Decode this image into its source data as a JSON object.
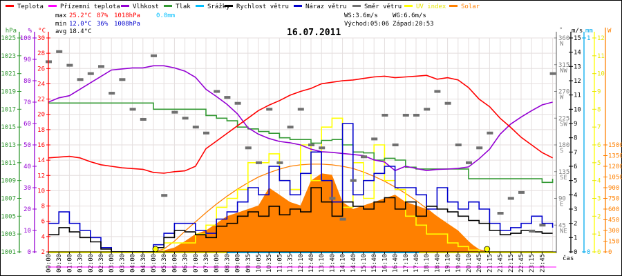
{
  "legend": [
    {
      "label": "Teplota",
      "color": "#ff0000"
    },
    {
      "label": "Přízemní teplota",
      "color": "#ff00ff"
    },
    {
      "label": "Vlhkost",
      "color": "#9400d3"
    },
    {
      "label": "Tlak",
      "color": "#339933"
    },
    {
      "label": "Srážky",
      "color": "#00bfff"
    },
    {
      "label": "Rychlost větru",
      "color": "#000000"
    },
    {
      "label": "Náraz větru",
      "color": "#0000cc"
    },
    {
      "label": "Směr větru",
      "color": "#707070"
    },
    {
      "label": "UV index",
      "color": "#ffff00"
    },
    {
      "label": "Solar",
      "color": "#ff8000"
    }
  ],
  "stats": {
    "max_label": "max",
    "max_temp": "25.2°C",
    "max_hum": "87%",
    "max_press": "1018hPa",
    "rain": "0.0mm",
    "min_label": "min",
    "min_temp": "12.0°C",
    "min_hum": "36%",
    "min_press": "1008hPa",
    "avg_label": "avg",
    "avg_temp": "18.4°C",
    "ws": "WS:3.6m/s",
    "wg": "WG:6.6m/s",
    "sunrise": "Východ:05:06",
    "sunset": "Západ:20:53"
  },
  "chart_data": {
    "type": "line",
    "title": "16.07.2011",
    "xlabel": "čas",
    "x_tick_labels": [
      "00:00",
      "00:30",
      "01:00",
      "01:30",
      "02:00",
      "02:30",
      "03:00",
      "03:30",
      "04:00",
      "04:30",
      "05:00",
      "05:30",
      "06:00",
      "06:30",
      "07:00",
      "07:30",
      "08:00",
      "08:30",
      "09:00",
      "09:35",
      "10:05",
      "10:35",
      "11:05",
      "11:35",
      "12:10",
      "12:40",
      "13:10",
      "13:40",
      "14:10",
      "14:40",
      "15:10",
      "15:40",
      "16:10",
      "16:40",
      "17:10",
      "17:40",
      "18:10",
      "18:40",
      "19:10",
      "19:40",
      "20:10",
      "20:45",
      "21:15",
      "21:45",
      "22:15",
      "22:45",
      "23:15",
      "23:45"
    ],
    "x_hours_step": 0.5,
    "axes": {
      "pressure": {
        "unit": "hPa",
        "range": [
          1001,
          1025
        ],
        "ticks": [
          1001,
          1003,
          1005,
          1007,
          1009,
          1011,
          1013,
          1015,
          1017,
          1019,
          1021,
          1023,
          1025
        ],
        "color": "#339933"
      },
      "humidity": {
        "unit": "%",
        "range": [
          0,
          100
        ],
        "ticks": [
          0,
          10,
          20,
          30,
          40,
          50,
          60,
          70,
          80,
          90,
          100
        ],
        "color": "#9400d3"
      },
      "temperature": {
        "unit": "°C",
        "range": [
          2,
          30
        ],
        "ticks": [
          2,
          4,
          6,
          8,
          10,
          12,
          14,
          16,
          18,
          20,
          22,
          24,
          26,
          28,
          30
        ],
        "color": "#ff0000"
      },
      "direction": {
        "unit": "°",
        "range": [
          0,
          360
        ],
        "ticks": [
          [
            45,
            "45",
            "NE"
          ],
          [
            90,
            "90",
            "E"
          ],
          [
            135,
            "135",
            "SE"
          ],
          [
            180,
            "180",
            "S"
          ],
          [
            225,
            "225",
            "SW"
          ],
          [
            270,
            "270",
            "W"
          ],
          [
            315,
            "315",
            "NW"
          ],
          [
            360,
            "360",
            "N"
          ]
        ],
        "color": "#808080"
      },
      "wind": {
        "unit": "m/s",
        "range": [
          0,
          15
        ],
        "ticks": [
          0,
          1,
          2,
          3,
          4,
          5,
          6,
          7,
          8,
          9,
          10,
          11,
          12,
          13,
          14,
          15
        ],
        "color": "#000000"
      },
      "rain": {
        "unit": "mm",
        "range": [
          0,
          1
        ],
        "ticks": [
          0,
          1
        ],
        "color": "#00aaee"
      },
      "uv": {
        "unit": "",
        "range": [
          0,
          12
        ],
        "ticks": [
          0,
          1,
          2,
          3,
          4,
          5,
          6,
          7,
          8,
          9,
          10,
          11,
          12
        ],
        "color": "#dddd00"
      },
      "solar": {
        "unit": "W",
        "range": [
          0,
          3000
        ],
        "ticks": [
          0,
          150,
          300,
          450,
          600,
          750,
          900,
          1050,
          1200,
          1350,
          1500
        ],
        "color": "#ff8000"
      }
    },
    "series": [
      {
        "name": "Solar",
        "axis": "solar",
        "kind": "area",
        "color": "#ff8000",
        "values": [
          0,
          0,
          0,
          0,
          0,
          0,
          0,
          0,
          0,
          0,
          0,
          20,
          60,
          150,
          250,
          300,
          400,
          500,
          550,
          600,
          650,
          900,
          800,
          700,
          650,
          1000,
          1100,
          1080,
          700,
          600,
          650,
          700,
          750,
          800,
          700,
          650,
          600,
          500,
          400,
          300,
          150,
          20,
          0,
          0,
          0,
          0,
          0,
          0,
          0
        ]
      },
      {
        "name": "Solar theoretical",
        "axis": "solar",
        "kind": "line",
        "color": "#ff8000",
        "values": [
          0,
          0,
          0,
          0,
          0,
          0,
          0,
          0,
          0,
          0,
          0,
          40,
          150,
          290,
          420,
          550,
          670,
          780,
          880,
          970,
          1050,
          1110,
          1160,
          1200,
          1220,
          1230,
          1230,
          1220,
          1200,
          1170,
          1120,
          1060,
          990,
          910,
          820,
          720,
          610,
          490,
          370,
          250,
          130,
          30,
          0,
          0,
          0,
          0,
          0,
          0,
          0
        ]
      },
      {
        "name": "UV index",
        "axis": "uv",
        "kind": "step",
        "color": "#ffff00",
        "values": [
          0,
          0,
          0,
          0,
          0,
          0,
          0,
          0,
          0,
          0,
          0,
          0.5,
          0.5,
          0.5,
          1,
          1.5,
          2.5,
          3,
          3.5,
          5,
          5,
          5.5,
          4,
          3.5,
          6,
          4,
          7,
          7.5,
          2.5,
          5,
          3,
          6,
          4,
          3.5,
          2,
          1.5,
          1,
          1,
          0.5,
          0.3,
          0.1,
          0,
          0,
          0,
          0,
          0,
          0,
          0,
          0
        ]
      },
      {
        "name": "Tlak",
        "axis": "pressure",
        "kind": "step",
        "color": "#339933",
        "values": [
          1017.7,
          1017.7,
          1017.7,
          1017.7,
          1017.7,
          1017.7,
          1017.7,
          1017.7,
          1017.7,
          1017.7,
          1017,
          1017,
          1017,
          1017,
          1017,
          1016.3,
          1016,
          1015.7,
          1015,
          1014.8,
          1014.5,
          1014.3,
          1013.8,
          1013.6,
          1013.6,
          1013.2,
          1013.5,
          1013.6,
          1013,
          1012.2,
          1012.1,
          1011.3,
          1011.5,
          1011.3,
          1010.5,
          1010.3,
          1010.3,
          1010.3,
          1010.3,
          1010.3,
          1009.2,
          1009.2,
          1009.2,
          1009.2,
          1009.2,
          1009.2,
          1009.2,
          1008.8,
          1009.2
        ]
      },
      {
        "name": "Vlhkost",
        "axis": "humidity",
        "kind": "line",
        "color": "#9400d3",
        "values": [
          70,
          72,
          73,
          76,
          79,
          82,
          85,
          85.5,
          86,
          86,
          87,
          87,
          86,
          84.5,
          81.6,
          76,
          72.6,
          69,
          64.5,
          58,
          55,
          53,
          51.6,
          51,
          50,
          48,
          46.8,
          46.5,
          46,
          45.5,
          45,
          43,
          42,
          38,
          40,
          39,
          38,
          38.5,
          38.7,
          39,
          39.7,
          43.5,
          48,
          55,
          59.7,
          63,
          66,
          68.7,
          70
        ]
      },
      {
        "name": "Teplota",
        "axis": "temperature",
        "kind": "line",
        "color": "#ff0000",
        "values": [
          14.3,
          14.4,
          14.5,
          14.3,
          13.8,
          13.4,
          13.2,
          13.0,
          12.9,
          12.8,
          12.4,
          12.3,
          12.5,
          12.6,
          13.2,
          15.5,
          16.5,
          17.5,
          18.5,
          19.5,
          20.5,
          21.2,
          21.8,
          22.5,
          23.0,
          23.4,
          24.0,
          24.2,
          24.4,
          24.5,
          24.7,
          24.9,
          25.0,
          24.8,
          24.9,
          25.0,
          25.1,
          24.6,
          24.8,
          24.5,
          23.5,
          22.0,
          21.0,
          19.5,
          18.3,
          17.0,
          16.0,
          15.0,
          14.3
        ]
      },
      {
        "name": "Náraz větru",
        "axis": "wind",
        "kind": "step",
        "color": "#0000cc",
        "values": [
          2.0,
          2.8,
          2.0,
          1.5,
          1.0,
          0.3,
          0,
          0,
          0,
          0,
          0.5,
          1.3,
          2.0,
          2.0,
          1.5,
          1.3,
          2.3,
          2.8,
          3.5,
          4.5,
          4.0,
          6.0,
          5.0,
          4.0,
          5.5,
          7.0,
          5.0,
          3.5,
          9.0,
          4.0,
          5.0,
          5.5,
          6.0,
          4.5,
          4.5,
          4.0,
          3.0,
          4.5,
          3.5,
          3.0,
          3.5,
          3.0,
          2.0,
          1.5,
          1.7,
          2.0,
          2.5,
          2.0,
          1.7
        ]
      },
      {
        "name": "Rychlost větru",
        "axis": "wind",
        "kind": "step",
        "color": "#000000",
        "values": [
          1.2,
          1.7,
          1.4,
          1.0,
          0.7,
          0.2,
          0,
          0,
          0,
          0,
          0.3,
          1.0,
          1.5,
          1.4,
          1.2,
          1.0,
          1.8,
          2.0,
          2.5,
          2.8,
          2.5,
          3.2,
          2.6,
          3.0,
          2.8,
          4.5,
          3.5,
          2.5,
          3.5,
          3.2,
          3.0,
          3.5,
          3.8,
          3.0,
          3.5,
          2.5,
          3.2,
          3.0,
          2.8,
          2.5,
          2.2,
          2.0,
          1.5,
          1.2,
          1.3,
          1.5,
          1.4,
          1.3,
          1.3
        ]
      },
      {
        "name": "Směr větru",
        "axis": "direction",
        "kind": "dash",
        "color": "#707070",
        "values": [
          320,
          337,
          314,
          290,
          300,
          312,
          267,
          290,
          240,
          223,
          330,
          95,
          235,
          225,
          210,
          200,
          270,
          260,
          250,
          175,
          150,
          240,
          150,
          210,
          240,
          180,
          175,
          90,
          55,
          120,
          160,
          190,
          230,
          180,
          230,
          230,
          240,
          270,
          250,
          180,
          150,
          175,
          200,
          65,
          90,
          100,
          35,
          45,
          300
        ]
      }
    ],
    "sun_markers_hours": [
      5.1,
      20.88
    ]
  }
}
